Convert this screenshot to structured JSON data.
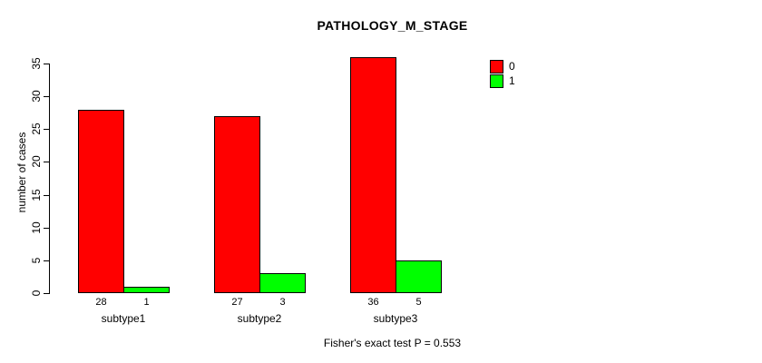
{
  "title": "PATHOLOGY_M_STAGE",
  "footer_note": "Fisher's exact test P = 0.553",
  "chart_data": {
    "type": "bar",
    "title": "PATHOLOGY_M_STAGE",
    "categories": [
      "subtype1",
      "subtype2",
      "subtype3"
    ],
    "series": [
      {
        "name": "0",
        "color": "#FF0000",
        "values": [
          28,
          27,
          36
        ]
      },
      {
        "name": "1",
        "color": "#00FF00",
        "values": [
          1,
          3,
          5
        ]
      }
    ],
    "bar_count_labels": [
      [
        28,
        1
      ],
      [
        27,
        3
      ],
      [
        36,
        5
      ]
    ],
    "xlabel": "",
    "ylabel": "number of cases",
    "yticks": [
      0,
      5,
      10,
      15,
      20,
      25,
      30,
      35
    ],
    "ylim": [
      0,
      36.5
    ],
    "grid": false,
    "legend_position": "top-right",
    "legend_entries": [
      "0",
      "1"
    ],
    "annotation": "Fisher's exact test P = 0.553"
  }
}
